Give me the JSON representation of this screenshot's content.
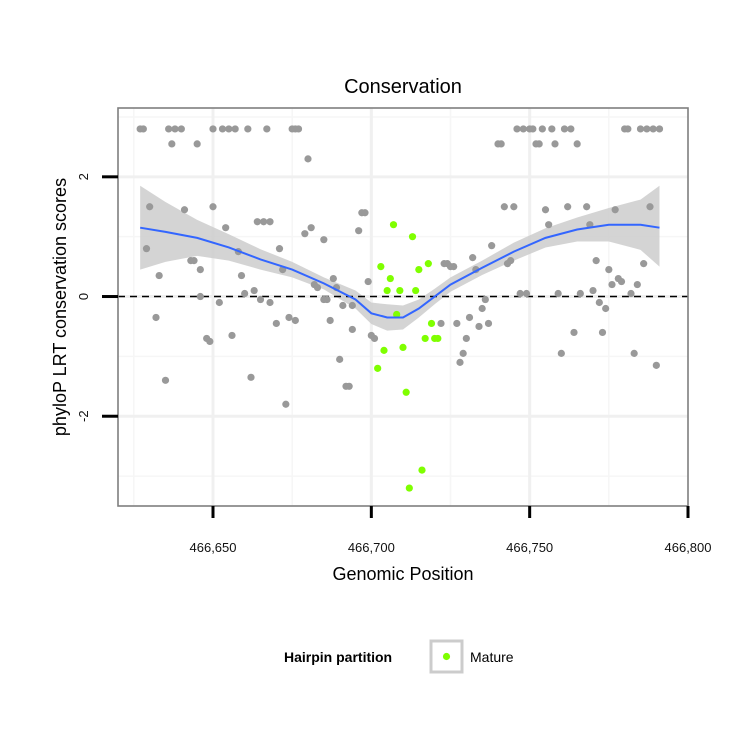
{
  "chart_data": {
    "type": "scatter",
    "title": "Conservation",
    "xlabel": "Genomic Position",
    "ylabel": "phyloP LRT conservation scores",
    "xlim": [
      466620,
      466800
    ],
    "ylim": [
      -3.5,
      3.15
    ],
    "x_ticks": [
      466650,
      466700,
      466750,
      466800
    ],
    "x_tick_labels": [
      "466,650",
      "466,700",
      "466,750",
      "466,800"
    ],
    "y_ticks": [
      -2,
      0,
      2
    ],
    "y_tick_labels": [
      "-2",
      "0",
      "2"
    ],
    "grid": true,
    "reference_line": {
      "y": 0,
      "style": "dashed"
    },
    "legend": {
      "title": "Hairpin partition",
      "position": "bottom",
      "entries": [
        {
          "label": "Mature",
          "color": "#7fff00"
        }
      ]
    },
    "series": [
      {
        "role": "other",
        "color": "#999999",
        "points": [
          [
            466627,
            2.8
          ],
          [
            466628,
            2.8
          ],
          [
            466629,
            0.8
          ],
          [
            466630,
            1.5
          ],
          [
            466632,
            -0.35
          ],
          [
            466633,
            0.35
          ],
          [
            466635,
            -1.4
          ],
          [
            466636,
            2.8
          ],
          [
            466637,
            2.55
          ],
          [
            466638,
            2.8
          ],
          [
            466640,
            2.8
          ],
          [
            466641,
            1.45
          ],
          [
            466643,
            0.6
          ],
          [
            466644,
            0.6
          ],
          [
            466645,
            2.55
          ],
          [
            466646,
            0.45
          ],
          [
            466646,
            0
          ],
          [
            466648,
            -0.7
          ],
          [
            466649,
            -0.75
          ],
          [
            466650,
            2.8
          ],
          [
            466650,
            1.5
          ],
          [
            466652,
            -0.1
          ],
          [
            466653,
            2.8
          ],
          [
            466654,
            1.15
          ],
          [
            466655,
            2.8
          ],
          [
            466656,
            -0.65
          ],
          [
            466657,
            2.8
          ],
          [
            466658,
            0.75
          ],
          [
            466659,
            0.35
          ],
          [
            466660,
            0.05
          ],
          [
            466661,
            2.8
          ],
          [
            466662,
            -1.35
          ],
          [
            466663,
            0.1
          ],
          [
            466664,
            1.25
          ],
          [
            466665,
            -0.05
          ],
          [
            466666,
            1.25
          ],
          [
            466667,
            2.8
          ],
          [
            466668,
            -0.1
          ],
          [
            466668,
            1.25
          ],
          [
            466670,
            -0.45
          ],
          [
            466671,
            0.8
          ],
          [
            466672,
            0.45
          ],
          [
            466673,
            -1.8
          ],
          [
            466674,
            -0.35
          ],
          [
            466675,
            2.8
          ],
          [
            466676,
            2.8
          ],
          [
            466676,
            -0.4
          ],
          [
            466677,
            2.8
          ],
          [
            466679,
            1.05
          ],
          [
            466680,
            2.3
          ],
          [
            466681,
            1.15
          ],
          [
            466682,
            0.2
          ],
          [
            466683,
            0.15
          ],
          [
            466685,
            -0.05
          ],
          [
            466685,
            0.95
          ],
          [
            466686,
            -0.05
          ],
          [
            466687,
            -0.4
          ],
          [
            466688,
            0.3
          ],
          [
            466689,
            0.15
          ],
          [
            466690,
            -1.05
          ],
          [
            466691,
            -0.15
          ],
          [
            466692,
            -1.5
          ],
          [
            466693,
            -1.5
          ],
          [
            466694,
            -0.55
          ],
          [
            466694,
            -0.15
          ],
          [
            466696,
            1.1
          ],
          [
            466697,
            1.4
          ],
          [
            466698,
            1.4
          ],
          [
            466699,
            0.25
          ],
          [
            466700,
            -0.65
          ],
          [
            466701,
            -0.7
          ],
          [
            466722,
            -0.45
          ],
          [
            466723,
            0.55
          ],
          [
            466724,
            0.55
          ],
          [
            466725,
            0.5
          ],
          [
            466726,
            0.5
          ],
          [
            466727,
            -0.45
          ],
          [
            466728,
            -1.1
          ],
          [
            466729,
            -0.95
          ],
          [
            466730,
            -0.7
          ],
          [
            466731,
            -0.35
          ],
          [
            466732,
            0.65
          ],
          [
            466733,
            0.45
          ],
          [
            466734,
            -0.5
          ],
          [
            466735,
            -0.2
          ],
          [
            466736,
            -0.05
          ],
          [
            466737,
            -0.45
          ],
          [
            466738,
            0.85
          ],
          [
            466740,
            2.55
          ],
          [
            466741,
            2.55
          ],
          [
            466742,
            1.5
          ],
          [
            466743,
            0.55
          ],
          [
            466744,
            0.6
          ],
          [
            466745,
            1.5
          ],
          [
            466746,
            2.8
          ],
          [
            466747,
            0.05
          ],
          [
            466748,
            2.8
          ],
          [
            466749,
            0.05
          ],
          [
            466750,
            2.8
          ],
          [
            466751,
            2.8
          ],
          [
            466752,
            2.55
          ],
          [
            466753,
            2.55
          ],
          [
            466754,
            2.8
          ],
          [
            466755,
            1.45
          ],
          [
            466756,
            1.2
          ],
          [
            466757,
            2.8
          ],
          [
            466758,
            2.55
          ],
          [
            466759,
            0.05
          ],
          [
            466760,
            -0.95
          ],
          [
            466761,
            2.8
          ],
          [
            466762,
            1.5
          ],
          [
            466763,
            2.8
          ],
          [
            466764,
            -0.6
          ],
          [
            466765,
            2.55
          ],
          [
            466766,
            0.05
          ],
          [
            466768,
            1.5
          ],
          [
            466769,
            1.2
          ],
          [
            466770,
            0.1
          ],
          [
            466771,
            0.6
          ],
          [
            466772,
            -0.1
          ],
          [
            466773,
            -0.6
          ],
          [
            466774,
            -0.2
          ],
          [
            466775,
            0.45
          ],
          [
            466776,
            0.2
          ],
          [
            466777,
            1.45
          ],
          [
            466778,
            0.3
          ],
          [
            466779,
            0.25
          ],
          [
            466780,
            2.8
          ],
          [
            466781,
            2.8
          ],
          [
            466782,
            0.05
          ],
          [
            466783,
            -0.95
          ],
          [
            466784,
            0.2
          ],
          [
            466785,
            2.8
          ],
          [
            466786,
            0.55
          ],
          [
            466787,
            2.8
          ],
          [
            466788,
            1.5
          ],
          [
            466789,
            2.8
          ],
          [
            466790,
            -1.15
          ],
          [
            466791,
            2.8
          ]
        ]
      },
      {
        "role": "Mature",
        "name": "Mature",
        "color": "#7fff00",
        "points": [
          [
            466702,
            -1.2
          ],
          [
            466703,
            0.5
          ],
          [
            466704,
            -0.9
          ],
          [
            466705,
            0.1
          ],
          [
            466706,
            0.3
          ],
          [
            466707,
            1.2
          ],
          [
            466708,
            -0.3
          ],
          [
            466709,
            0.1
          ],
          [
            466710,
            -0.85
          ],
          [
            466711,
            -1.6
          ],
          [
            466712,
            -3.2
          ],
          [
            466713,
            1.0
          ],
          [
            466714,
            0.1
          ],
          [
            466715,
            0.45
          ],
          [
            466716,
            -2.9
          ],
          [
            466717,
            -0.7
          ],
          [
            466718,
            0.55
          ],
          [
            466719,
            -0.45
          ],
          [
            466720,
            -0.7
          ],
          [
            466721,
            -0.7
          ]
        ]
      }
    ],
    "smooth": {
      "color": "#3366ff",
      "band_color": "#cccccc",
      "fit": [
        [
          466627,
          1.15
        ],
        [
          466635,
          1.08
        ],
        [
          466645,
          0.98
        ],
        [
          466655,
          0.82
        ],
        [
          466665,
          0.62
        ],
        [
          466675,
          0.45
        ],
        [
          466685,
          0.22
        ],
        [
          466695,
          -0.05
        ],
        [
          466700,
          -0.28
        ],
        [
          466705,
          -0.35
        ],
        [
          466710,
          -0.35
        ],
        [
          466715,
          -0.2
        ],
        [
          466720,
          0
        ],
        [
          466725,
          0.2
        ],
        [
          466735,
          0.48
        ],
        [
          466745,
          0.75
        ],
        [
          466755,
          0.98
        ],
        [
          466765,
          1.12
        ],
        [
          466775,
          1.2
        ],
        [
          466785,
          1.2
        ],
        [
          466791,
          1.15
        ]
      ],
      "lower": [
        [
          466627,
          0.45
        ],
        [
          466635,
          0.58
        ],
        [
          466645,
          0.68
        ],
        [
          466655,
          0.6
        ],
        [
          466665,
          0.45
        ],
        [
          466675,
          0.32
        ],
        [
          466685,
          0.12
        ],
        [
          466695,
          -0.2
        ],
        [
          466700,
          -0.46
        ],
        [
          466705,
          -0.57
        ],
        [
          466710,
          -0.55
        ],
        [
          466715,
          -0.35
        ],
        [
          466720,
          -0.13
        ],
        [
          466725,
          0.08
        ],
        [
          466735,
          0.36
        ],
        [
          466745,
          0.6
        ],
        [
          466755,
          0.82
        ],
        [
          466765,
          0.92
        ],
        [
          466775,
          0.92
        ],
        [
          466785,
          0.78
        ],
        [
          466791,
          0.5
        ]
      ],
      "upper": [
        [
          466627,
          1.85
        ],
        [
          466635,
          1.58
        ],
        [
          466645,
          1.28
        ],
        [
          466655,
          1.04
        ],
        [
          466665,
          0.79
        ],
        [
          466675,
          0.58
        ],
        [
          466685,
          0.32
        ],
        [
          466695,
          0.1
        ],
        [
          466700,
          -0.1
        ],
        [
          466705,
          -0.13
        ],
        [
          466710,
          -0.15
        ],
        [
          466715,
          -0.05
        ],
        [
          466720,
          0.13
        ],
        [
          466725,
          0.32
        ],
        [
          466735,
          0.6
        ],
        [
          466745,
          0.9
        ],
        [
          466755,
          1.14
        ],
        [
          466765,
          1.32
        ],
        [
          466775,
          1.48
        ],
        [
          466785,
          1.62
        ],
        [
          466791,
          1.85
        ]
      ]
    }
  }
}
